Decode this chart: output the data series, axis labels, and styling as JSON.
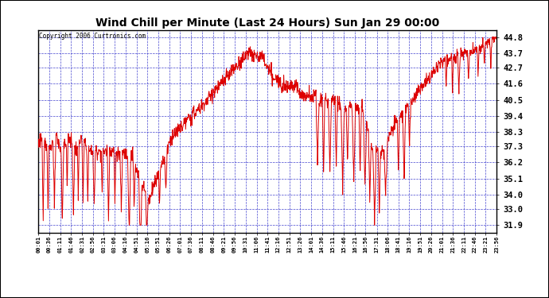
{
  "title": "Wind Chill per Minute (Last 24 Hours) Sun Jan 29 00:00",
  "copyright": "Copyright 2006 Curtronics.com",
  "bg_color": "#ffffff",
  "plot_bg_color": "#ffffff",
  "line_color": "#dd0000",
  "grid_color": "#3333cc",
  "ylabel_ticks": [
    31.9,
    33.0,
    34.0,
    35.1,
    36.2,
    37.3,
    38.3,
    39.4,
    40.5,
    41.6,
    42.7,
    43.7,
    44.8
  ],
  "ylim": [
    31.4,
    45.3
  ],
  "xlabel_ticks": [
    "00:01",
    "00:36",
    "01:11",
    "01:46",
    "02:31",
    "02:56",
    "03:31",
    "03:06",
    "04:16",
    "04:51",
    "05:16",
    "05:51",
    "06:26",
    "07:01",
    "07:36",
    "08:11",
    "08:46",
    "09:21",
    "09:56",
    "10:31",
    "11:06",
    "11:41",
    "12:16",
    "12:51",
    "13:26",
    "14:01",
    "14:36",
    "15:11",
    "15:46",
    "16:21",
    "16:56",
    "17:31",
    "18:06",
    "18:41",
    "19:16",
    "19:51",
    "20:26",
    "21:01",
    "21:36",
    "22:11",
    "22:46",
    "23:21",
    "23:56"
  ]
}
